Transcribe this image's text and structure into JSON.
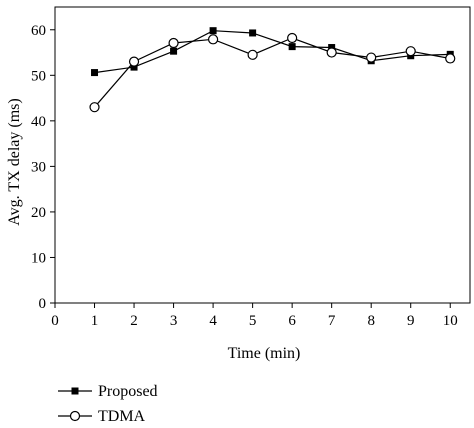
{
  "chart_data": {
    "type": "line",
    "xlabel": "Time (min)",
    "ylabel": "Avg. TX delay (ms)",
    "xlim": [
      0,
      10.5
    ],
    "ylim": [
      0,
      65
    ],
    "x_ticks": [
      0,
      1,
      2,
      3,
      4,
      5,
      6,
      7,
      8,
      9,
      10
    ],
    "y_ticks": [
      0,
      10,
      20,
      30,
      40,
      50,
      60
    ],
    "x": [
      1,
      2,
      3,
      4,
      5,
      6,
      7,
      8,
      9,
      10
    ],
    "series": [
      {
        "name": "Proposed",
        "marker": "filled-square",
        "color": "#000000",
        "values": [
          50.6,
          51.8,
          55.3,
          59.8,
          59.3,
          56.3,
          56.1,
          53.2,
          54.3,
          54.6
        ]
      },
      {
        "name": "TDMA",
        "marker": "open-circle",
        "color": "#000000",
        "values": [
          43.0,
          53.0,
          57.1,
          57.9,
          54.5,
          58.2,
          55.0,
          53.9,
          55.3,
          53.7
        ]
      }
    ],
    "grid": false,
    "legend_position": "bottom-left, below plot"
  }
}
